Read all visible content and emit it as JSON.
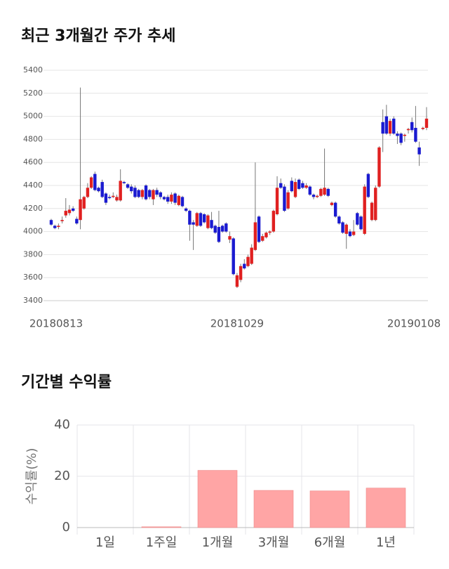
{
  "chart_data": [
    {
      "type": "candlestick",
      "title": "최근 3개월간 주가 추세",
      "categories": [
        "20180813",
        null,
        null,
        null,
        null,
        null,
        null,
        null,
        null,
        null,
        null,
        null,
        null,
        null,
        null,
        null,
        null,
        null,
        null,
        null,
        null,
        null,
        null,
        null,
        null,
        null,
        null,
        null,
        null,
        null,
        null,
        null,
        null,
        null,
        null,
        null,
        null,
        null,
        null,
        null,
        null,
        null,
        null,
        null,
        null,
        null,
        null,
        null,
        null,
        null,
        null,
        "20181029",
        null,
        null,
        null,
        null,
        null,
        null,
        null,
        null,
        null,
        null,
        null,
        null,
        null,
        null,
        null,
        null,
        null,
        null,
        null,
        null,
        null,
        null,
        null,
        null,
        null,
        null,
        null,
        null,
        null,
        null,
        null,
        null,
        null,
        null,
        null,
        null,
        null,
        null,
        null,
        null,
        null,
        null,
        null,
        null,
        null,
        null,
        null,
        null,
        "20190108",
        null,
        null,
        null
      ],
      "open": [
        4100,
        4050,
        4040,
        4090,
        4140,
        4160,
        4200,
        4110,
        4100,
        4200,
        4300,
        4380,
        4500,
        4380,
        4430,
        4330,
        4300,
        4300,
        4270,
        4270,
        4430,
        4410,
        4390,
        4380,
        4360,
        4300,
        4400,
        4360,
        4280,
        4360,
        4340,
        4300,
        4300,
        4260,
        4330,
        4230,
        4300,
        4200,
        4180,
        4080,
        4050,
        4160,
        4150,
        4030,
        4100,
        4050,
        4040,
        4050,
        4070,
        3930,
        3940,
        3520,
        3580,
        3720,
        3700,
        3720,
        3840,
        4130,
        3920,
        3950,
        3990,
        4000,
        4150,
        4420,
        4390,
        4200,
        4440,
        4300,
        4450,
        4420,
        4380,
        4390,
        4320,
        4300,
        4310,
        4320,
        4370,
        4230,
        4250,
        4130,
        4080,
        3980,
        4000,
        3970,
        4160,
        4130,
        3980,
        4500,
        4100,
        4100,
        4390,
        4950,
        5000,
        4850,
        4980,
        4850,
        4850,
        4830,
        4880,
        4950,
        4900,
        4730,
        4890,
        4900
      ],
      "high": [
        4110,
        4060,
        4070,
        4130,
        4290,
        4230,
        4220,
        4130,
        5250,
        4310,
        4420,
        4480,
        4520,
        4390,
        4450,
        4340,
        4320,
        4340,
        4320,
        4540,
        4440,
        4420,
        4410,
        4400,
        4370,
        4370,
        4410,
        4370,
        4370,
        4380,
        4350,
        4310,
        4320,
        4340,
        4340,
        4320,
        4310,
        4210,
        4190,
        4100,
        4170,
        4170,
        4160,
        4150,
        4170,
        4060,
        4180,
        4060,
        4080,
        4000,
        3950,
        3640,
        3720,
        3760,
        3800,
        3890,
        4600,
        4140,
        3980,
        4000,
        4010,
        4190,
        4480,
        4460,
        4410,
        4360,
        4470,
        4460,
        4460,
        4440,
        4420,
        4400,
        4330,
        4320,
        4380,
        4720,
        4380,
        4260,
        4260,
        4140,
        4090,
        4070,
        4020,
        4100,
        4170,
        4140,
        4410,
        4510,
        4260,
        4400,
        4740,
        5060,
        5100,
        4980,
        5000,
        4870,
        4860,
        4850,
        4900,
        4990,
        5090,
        4780,
        4910,
        5080
      ],
      "low": [
        4050,
        4020,
        4020,
        4070,
        4120,
        4140,
        4170,
        4060,
        4020,
        4190,
        4290,
        4370,
        4350,
        4340,
        4290,
        4230,
        4280,
        4290,
        4260,
        4260,
        4410,
        4370,
        4330,
        4290,
        4290,
        4280,
        4270,
        4280,
        4230,
        4300,
        4280,
        4270,
        4240,
        4240,
        4230,
        4220,
        4210,
        4170,
        3920,
        3840,
        4040,
        4040,
        4070,
        4020,
        4020,
        3980,
        3900,
        3990,
        3990,
        3900,
        3620,
        3510,
        3560,
        3670,
        3690,
        3710,
        3830,
        3900,
        3910,
        3940,
        3970,
        3990,
        4140,
        4370,
        4170,
        4190,
        4340,
        4290,
        4360,
        4370,
        4370,
        4310,
        4280,
        4290,
        4300,
        4310,
        4300,
        4220,
        4120,
        4060,
        3980,
        3850,
        3950,
        3960,
        4050,
        4010,
        3970,
        4290,
        4090,
        4090,
        4380,
        4690,
        4840,
        4830,
        4840,
        4760,
        4750,
        4780,
        4850,
        4860,
        4770,
        4570,
        4880,
        4880
      ],
      "close": [
        4060,
        4030,
        4050,
        4100,
        4180,
        4190,
        4180,
        4070,
        4280,
        4300,
        4380,
        4470,
        4360,
        4350,
        4300,
        4250,
        4290,
        4310,
        4300,
        4440,
        4420,
        4380,
        4350,
        4300,
        4300,
        4360,
        4280,
        4300,
        4360,
        4320,
        4300,
        4280,
        4260,
        4320,
        4250,
        4310,
        4220,
        4180,
        4060,
        4060,
        4160,
        4050,
        4080,
        4140,
        4030,
        3990,
        3910,
        4000,
        4000,
        3960,
        3630,
        3620,
        3700,
        3680,
        3780,
        3860,
        4080,
        3910,
        3960,
        3990,
        4000,
        4180,
        4380,
        4380,
        4180,
        4340,
        4350,
        4430,
        4370,
        4380,
        4400,
        4320,
        4300,
        4310,
        4370,
        4380,
        4310,
        4250,
        4130,
        4070,
        3990,
        4060,
        3960,
        4000,
        4060,
        4020,
        4390,
        4300,
        4250,
        4380,
        4730,
        4850,
        4850,
        4960,
        4850,
        4830,
        4770,
        4840,
        4890,
        4880,
        4780,
        4670,
        4900,
        4980
      ],
      "up_color": "#e02020",
      "down_color": "#1a1ad0",
      "ylim": [
        3400,
        5400
      ],
      "yticks": [
        3400,
        3600,
        3800,
        4000,
        4200,
        4400,
        4600,
        4800,
        5000,
        5200,
        5400
      ],
      "grid": true
    },
    {
      "type": "bar",
      "title": "기간별 수익률",
      "y_label": "수익률(%)",
      "categories": [
        "1일",
        "1주일",
        "1개월",
        "3개월",
        "6개월",
        "1년"
      ],
      "values": [
        0,
        0.3,
        22.3,
        14.5,
        14.3,
        15.4
      ],
      "color": "#ffa5a5",
      "ylim": [
        0,
        40
      ],
      "yticks": [
        0,
        20,
        40
      ],
      "grid": true
    }
  ]
}
